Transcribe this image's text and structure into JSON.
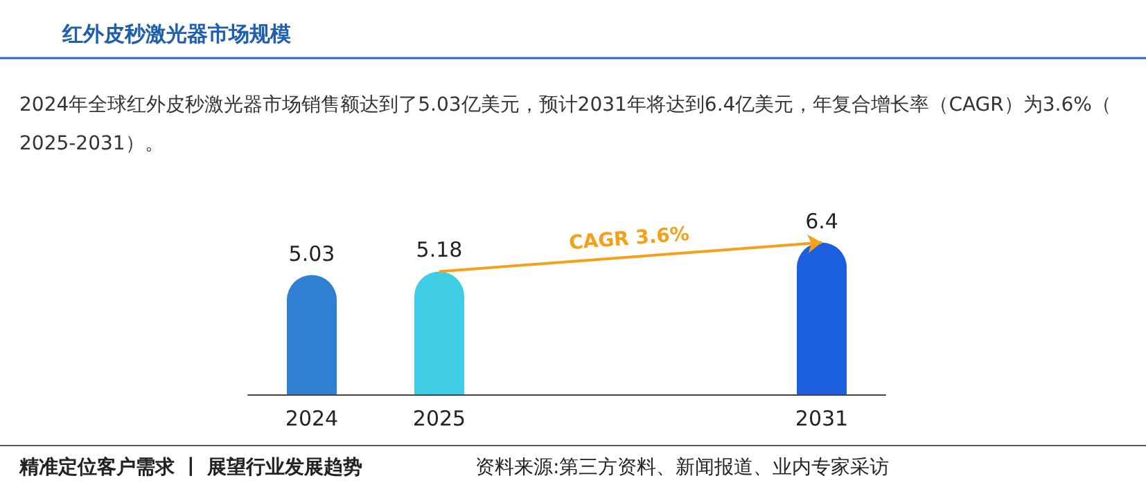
{
  "chart_data": {
    "type": "bar",
    "title": "红外皮秒激光器市场规模",
    "subtitle": "2024年全球红外皮秒激光器市场销售额达到了5.03亿美元，预计2031年将达到6.4亿美元，年复合增长率（CAGR）为3.6%（2025-2031）。",
    "categories": [
      "2024",
      "2025",
      null,
      null,
      "2031"
    ],
    "values": [
      5.03,
      5.18,
      null,
      null,
      6.4
    ],
    "colors": [
      "#2f7fd2",
      "#3fcde6",
      null,
      null,
      "#1b5fe0"
    ],
    "data_labels": true,
    "annotations": [
      "CAGR 3.6%",
      "精准定位客户需求 丨 展望行业发展趋势",
      "资料来源:第三方资料、新闻报道、业内专家采访"
    ]
  }
}
